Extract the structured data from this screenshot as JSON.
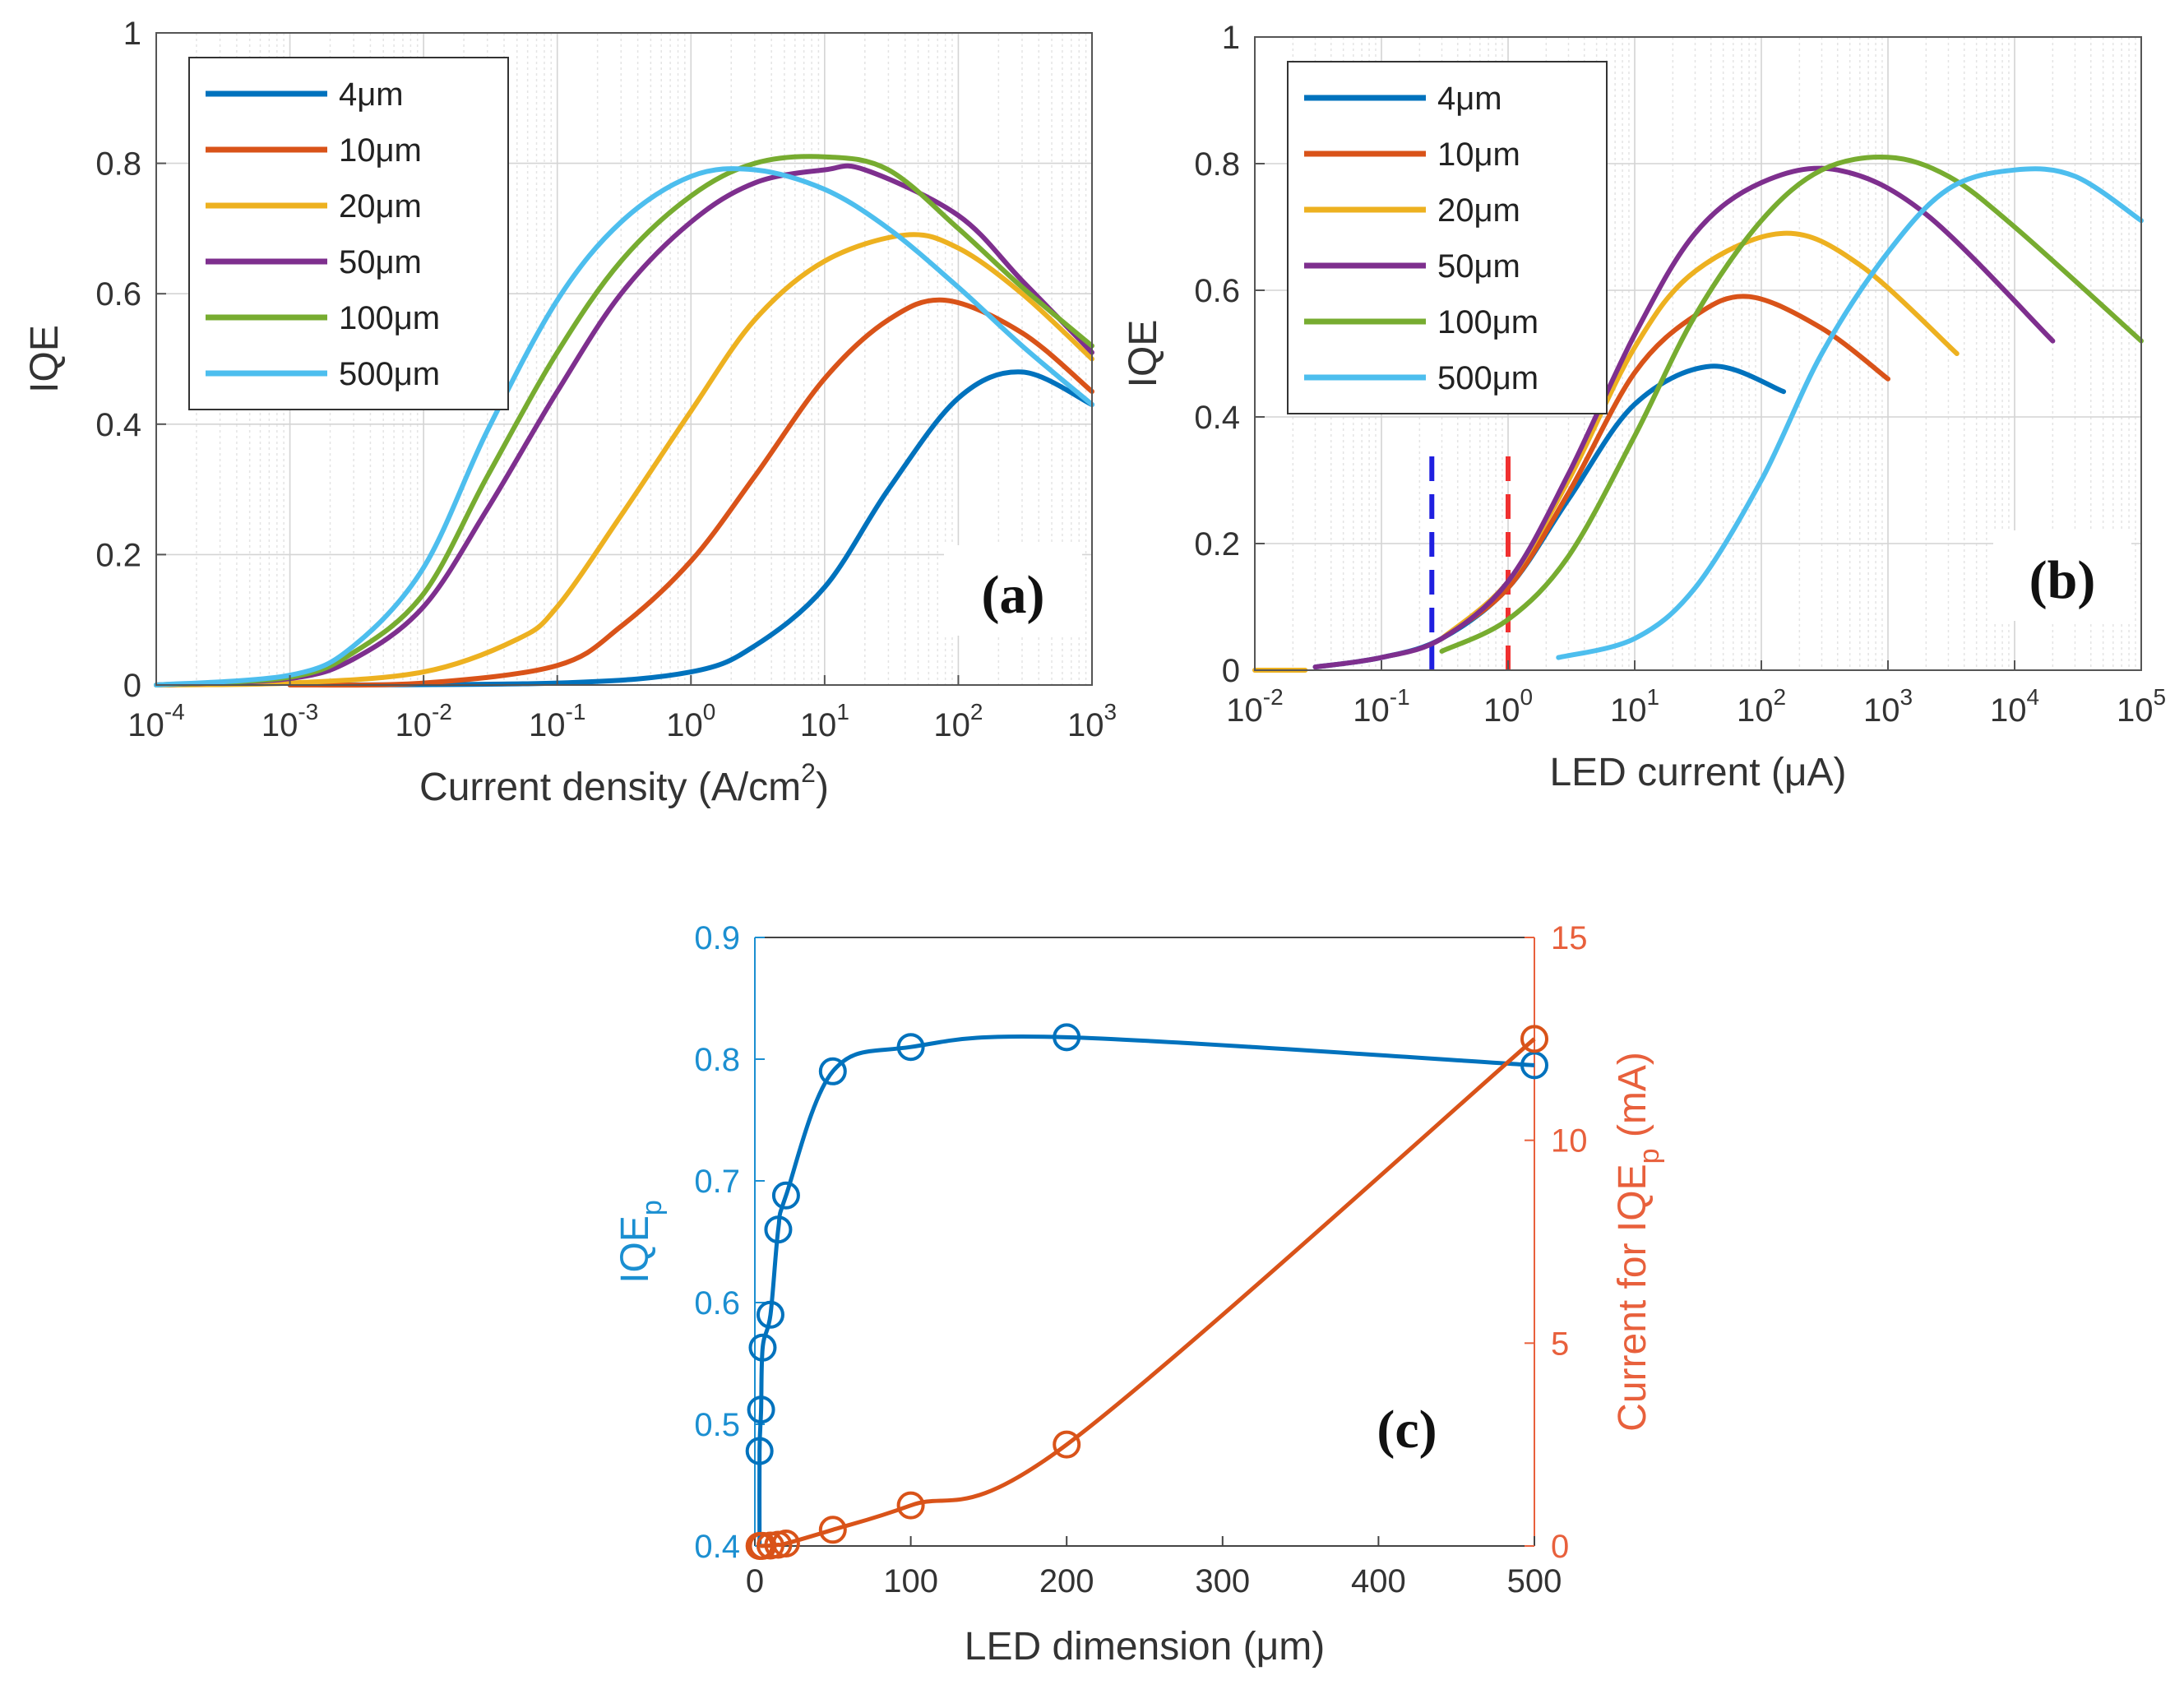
{
  "colors": {
    "c4": "#0072BD",
    "c10": "#D95319",
    "c20": "#EDB120",
    "c50": "#7E2F8E",
    "c100": "#77AC30",
    "c500": "#4DBEEE",
    "blue_axis": "#1B8FD1",
    "orange_axis": "#E8603C",
    "marker_line": "#1560BD",
    "ref_dash_blue": "#1F1FE0",
    "ref_dash_red": "#F03030"
  },
  "chart_data": [
    {
      "id": "a",
      "type": "line",
      "panel_label": "(a)",
      "xlabel": "Current density (A/cm",
      "xlabel_sup": "2",
      "xlabel_end": ")",
      "ylabel": "IQE",
      "xscale": "log",
      "xlim": [
        0.0001,
        1000
      ],
      "ylim": [
        0,
        1
      ],
      "grid": true,
      "legend_position": "top-left",
      "xticks": [
        {
          "base": "10",
          "exp": "-4"
        },
        {
          "base": "10",
          "exp": "-3"
        },
        {
          "base": "10",
          "exp": "-2"
        },
        {
          "base": "10",
          "exp": "-1"
        },
        {
          "base": "10",
          "exp": "0"
        },
        {
          "base": "10",
          "exp": "1"
        },
        {
          "base": "10",
          "exp": "2"
        },
        {
          "base": "10",
          "exp": "3"
        }
      ],
      "yticks": [
        "0",
        "0.2",
        "0.4",
        "0.6",
        "0.8",
        "1"
      ],
      "series": [
        {
          "name": "4μm",
          "color_key": "c4",
          "x": [
            0.001,
            0.1,
            1,
            3,
            10,
            30,
            100,
            300,
            1000
          ],
          "y": [
            0.0,
            0.003,
            0.02,
            0.06,
            0.15,
            0.3,
            0.44,
            0.48,
            0.43
          ]
        },
        {
          "name": "10μm",
          "color_key": "c10",
          "x": [
            0.001,
            0.01,
            0.1,
            0.3,
            1,
            3,
            10,
            30,
            80,
            300,
            1000
          ],
          "y": [
            0.0,
            0.003,
            0.03,
            0.09,
            0.19,
            0.32,
            0.47,
            0.56,
            0.59,
            0.54,
            0.45
          ]
        },
        {
          "name": "20μm",
          "color_key": "c20",
          "x": [
            0.0001,
            0.001,
            0.01,
            0.05,
            0.1,
            0.3,
            1,
            3,
            10,
            40,
            100,
            300,
            1000
          ],
          "y": [
            0.0,
            0.003,
            0.02,
            0.07,
            0.12,
            0.26,
            0.42,
            0.56,
            0.65,
            0.69,
            0.67,
            0.6,
            0.5
          ]
        },
        {
          "name": "50μm",
          "color_key": "c50",
          "x": [
            0.0001,
            0.001,
            0.003,
            0.01,
            0.03,
            0.1,
            0.3,
            1,
            3,
            10,
            20,
            100,
            300,
            1000
          ],
          "y": [
            0.0,
            0.01,
            0.04,
            0.12,
            0.27,
            0.45,
            0.6,
            0.71,
            0.77,
            0.79,
            0.79,
            0.72,
            0.62,
            0.51
          ]
        },
        {
          "name": "100μm",
          "color_key": "c100",
          "x": [
            0.0001,
            0.001,
            0.003,
            0.01,
            0.03,
            0.1,
            0.3,
            1,
            3,
            10,
            30,
            100,
            300,
            1000
          ],
          "y": [
            0.0,
            0.012,
            0.05,
            0.14,
            0.32,
            0.51,
            0.65,
            0.75,
            0.8,
            0.81,
            0.79,
            0.7,
            0.61,
            0.52
          ]
        },
        {
          "name": "500μm",
          "color_key": "c500",
          "x": [
            0.0001,
            0.001,
            0.003,
            0.01,
            0.03,
            0.1,
            0.3,
            1,
            3,
            10,
            30,
            100,
            300,
            1000
          ],
          "y": [
            0.0,
            0.015,
            0.06,
            0.18,
            0.39,
            0.59,
            0.71,
            0.78,
            0.79,
            0.76,
            0.7,
            0.61,
            0.52,
            0.43
          ]
        }
      ]
    },
    {
      "id": "b",
      "type": "line",
      "panel_label": "(b)",
      "xlabel": "LED current (μA)",
      "ylabel": "IQE",
      "xscale": "log",
      "xlim": [
        0.01,
        100000
      ],
      "ylim": [
        0,
        1
      ],
      "grid": true,
      "legend_position": "top-left",
      "xticks": [
        {
          "base": "10",
          "exp": "-2"
        },
        {
          "base": "10",
          "exp": "-1"
        },
        {
          "base": "10",
          "exp": "0"
        },
        {
          "base": "10",
          "exp": "1"
        },
        {
          "base": "10",
          "exp": "2"
        },
        {
          "base": "10",
          "exp": "3"
        },
        {
          "base": "10",
          "exp": "4"
        },
        {
          "base": "10",
          "exp": "5"
        }
      ],
      "yticks": [
        "0",
        "0.2",
        "0.4",
        "0.6",
        "0.8",
        "1"
      ],
      "reference_lines": [
        {
          "x": 0.25,
          "color_key": "ref_dash_blue",
          "ymax": 0.35
        },
        {
          "x": 1.0,
          "color_key": "ref_dash_red",
          "ymax": 0.35
        }
      ],
      "series": [
        {
          "name": "",
          "color_key": "c20",
          "x": [
            0.01,
            0.025
          ],
          "y": [
            0.0,
            0.0
          ]
        },
        {
          "name": "4μm",
          "color_key": "c4",
          "x": [
            0.03,
            0.1,
            0.3,
            1,
            3,
            10,
            40,
            150
          ],
          "y": [
            0.005,
            0.02,
            0.05,
            0.13,
            0.27,
            0.42,
            0.48,
            0.44
          ]
        },
        {
          "name": "10μm",
          "color_key": "c10",
          "x": [
            0.3,
            1,
            3,
            10,
            30,
            80,
            300,
            1000
          ],
          "y": [
            0.05,
            0.13,
            0.28,
            0.47,
            0.56,
            0.59,
            0.54,
            0.46
          ]
        },
        {
          "name": "20μm",
          "color_key": "c20",
          "x": [
            0.3,
            1,
            3,
            10,
            30,
            150,
            600,
            3500
          ],
          "y": [
            0.05,
            0.14,
            0.3,
            0.51,
            0.63,
            0.69,
            0.64,
            0.5
          ]
        },
        {
          "name": "50μm",
          "color_key": "c50",
          "x": [
            0.03,
            0.1,
            0.3,
            1,
            3,
            10,
            30,
            100,
            400,
            2000,
            20000
          ],
          "y": [
            0.005,
            0.02,
            0.05,
            0.14,
            0.31,
            0.53,
            0.69,
            0.77,
            0.79,
            0.72,
            0.52
          ]
        },
        {
          "name": "100μm",
          "color_key": "c100",
          "x": [
            0.3,
            1,
            3,
            10,
            30,
            100,
            300,
            1000,
            3000,
            10000,
            100000
          ],
          "y": [
            0.03,
            0.08,
            0.18,
            0.37,
            0.56,
            0.71,
            0.79,
            0.81,
            0.78,
            0.7,
            0.52
          ]
        },
        {
          "name": "500μm",
          "color_key": "c500",
          "x": [
            2.5,
            10,
            30,
            100,
            300,
            1000,
            3000,
            10000,
            30000,
            100000
          ],
          "y": [
            0.02,
            0.05,
            0.13,
            0.3,
            0.5,
            0.66,
            0.76,
            0.79,
            0.78,
            0.71
          ]
        }
      ]
    },
    {
      "id": "c",
      "type": "line",
      "panel_label": "(c)",
      "xlabel": "LED dimension (μm)",
      "ylabel_left": "IQE",
      "ylabel_left_sub": "p",
      "ylabel_right": "Current for IQE",
      "ylabel_right_sub": "p",
      "ylabel_right_end": " (mA)",
      "xlim": [
        0,
        500
      ],
      "ylim_left": [
        0.4,
        0.9
      ],
      "ylim_right": [
        0,
        15
      ],
      "grid": false,
      "xticks": [
        "0",
        "100",
        "200",
        "300",
        "400",
        "500"
      ],
      "yticks_left": [
        "0.4",
        "0.5",
        "0.6",
        "0.7",
        "0.8",
        "0.9"
      ],
      "yticks_right": [
        "0",
        "5",
        "10",
        "15"
      ],
      "series": [
        {
          "name": "",
          "axis": "left",
          "color_key": "c4",
          "x": [
            3,
            4,
            5,
            10,
            15,
            20,
            50,
            100,
            200,
            500
          ],
          "y": [
            0.478,
            0.512,
            0.563,
            0.59,
            0.66,
            0.688,
            0.79,
            0.81,
            0.818,
            0.795
          ]
        },
        {
          "name": "",
          "axis": "right",
          "color_key": "c10",
          "x": [
            3,
            4,
            5,
            10,
            15,
            20,
            50,
            100,
            200,
            500
          ],
          "y": [
            0.001,
            0.002,
            0.003,
            0.01,
            0.03,
            0.06,
            0.4,
            1.0,
            2.5,
            12.5
          ]
        }
      ]
    }
  ]
}
